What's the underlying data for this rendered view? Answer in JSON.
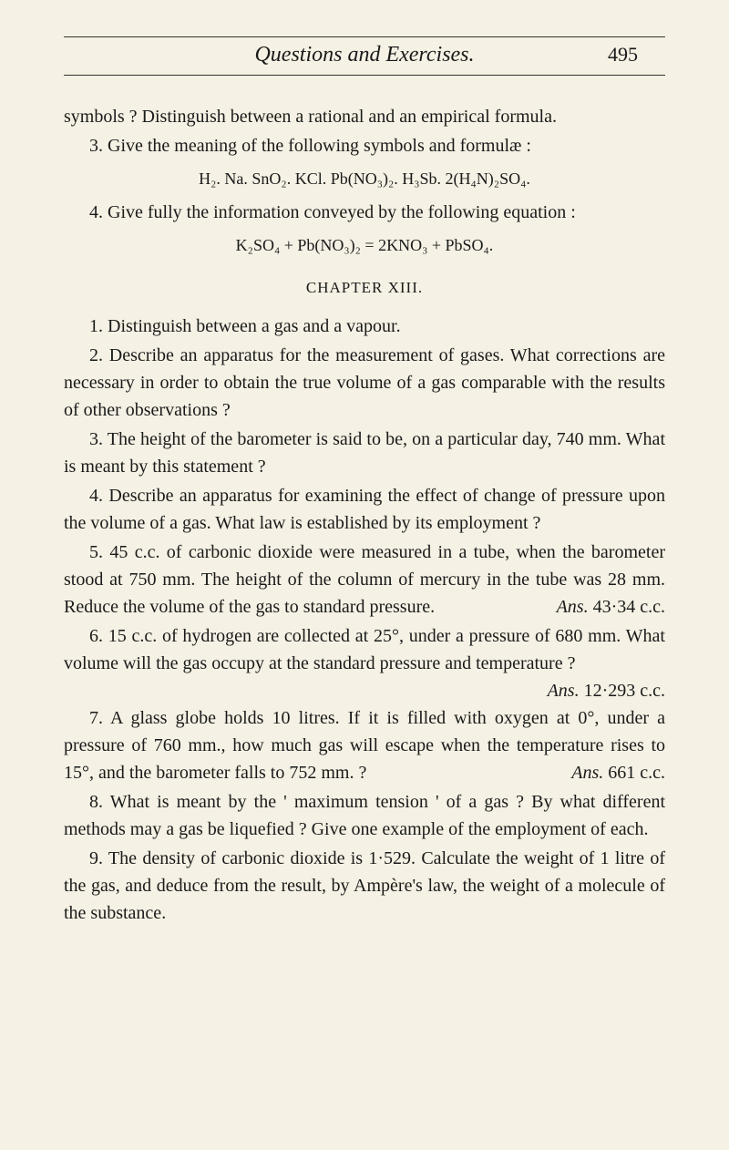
{
  "header": {
    "title": "Questions and Exercises.",
    "pageNumber": "495"
  },
  "paragraphs": {
    "p1": "symbols ?  Distinguish between a rational and an empirical formula.",
    "p2": "3. Give the meaning of the following symbols and formulæ :",
    "formula1": "H₂.  Na.  SnO₂.  KCl.  Pb(NO₃)₂.  H₃Sb.  2(H₄N)₂SO₄.",
    "p3": "4. Give fully the information conveyed by the following equation :",
    "formula2": "K₂SO₄ + Pb(NO₃)₂ = 2KNO₃ + PbSO₄.",
    "chapterHeading": "CHAPTER XIII.",
    "p4": "1. Distinguish between a gas and a vapour.",
    "p5": "2. Describe an apparatus for the measurement of gases. What corrections are necessary in order to obtain the true volume of a gas comparable with the results of other observations ?",
    "p6": "3. The height of the barometer is said to be, on a particular day, 740 mm.  What is meant by this statement ?",
    "p7": "4. Describe an apparatus for examining the effect of change of pressure upon the volume of a gas.  What law is established by its employment ?",
    "p8a": "5. 45 c.c. of carbonic dioxide were measured in a tube, when the barometer stood at 750 mm.  The height of the column of mercury in the tube was 28 mm.  Reduce the volume of the gas to standard pressure.",
    "ans5": "Ans.",
    "ans5val": " 43·34 c.c.",
    "p9a": "6. 15 c.c. of hydrogen are collected at 25°, under a pressure of 680 mm.  What volume will the gas occupy at the standard pressure and temperature ?",
    "ans6": "Ans.",
    "ans6val": " 12·293 c.c.",
    "p10a": "7. A glass globe holds 10 litres.  If it is filled with oxygen at 0°, under a pressure of 760 mm., how much gas will escape when the temperature rises to 15°, and the barometer falls to 752 mm. ?",
    "ans7": "Ans.",
    "ans7val": " 661 c.c.",
    "p11": "8. What is meant by the ' maximum tension ' of a gas ?  By what different methods may a gas be liquefied ?  Give one example of the employment of each.",
    "p12": "9. The density of carbonic dioxide is 1·529.  Calculate the weight of 1 litre of the gas, and deduce from the result, by Ampère's law, the weight of a molecule of the substance."
  }
}
